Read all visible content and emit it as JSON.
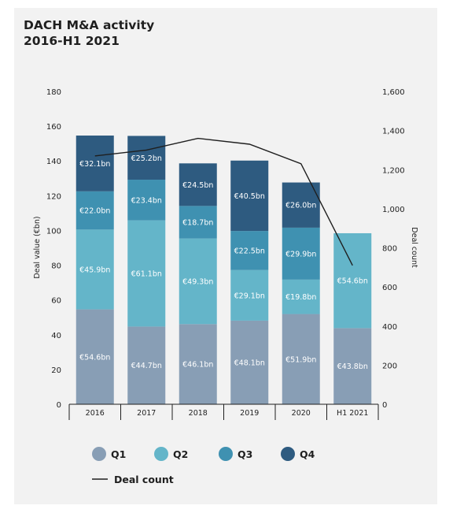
{
  "header": {
    "title_line1": "DACH M&A activity",
    "title_line2": "2016-H1 2021"
  },
  "chart_data": {
    "type": "bar",
    "stacked": true,
    "categories": [
      "2016",
      "2017",
      "2018",
      "2019",
      "2020",
      "H1 2021"
    ],
    "ylabel": "Deal value (€bn)",
    "ylim": [
      0,
      180
    ],
    "yticks": [
      0,
      20,
      40,
      60,
      80,
      100,
      120,
      140,
      160,
      180
    ],
    "y2label": "Deal count",
    "y2lim": [
      0,
      1600
    ],
    "y2ticks": [
      "0",
      "200",
      "400",
      "600",
      "800",
      "1,000",
      "1,200",
      "1,400",
      "1,600"
    ],
    "series": [
      {
        "name": "Q1",
        "color": "#889eb5",
        "values": [
          54.6,
          44.7,
          46.1,
          48.1,
          51.9,
          43.8
        ],
        "labels": [
          "€54.6bn",
          "€44.7bn",
          "€46.1bn",
          "€48.1bn",
          "€51.9bn",
          "€43.8bn"
        ]
      },
      {
        "name": "Q2",
        "color": "#64b5c9",
        "values": [
          45.9,
          61.1,
          49.3,
          29.1,
          19.8,
          54.6
        ],
        "labels": [
          "€45.9bn",
          "€61.1bn",
          "€49.3bn",
          "€29.1bn",
          "€19.8bn",
          "€54.6bn"
        ]
      },
      {
        "name": "Q3",
        "color": "#3f91b1",
        "values": [
          22.0,
          23.4,
          18.7,
          22.5,
          29.9,
          0
        ],
        "labels": [
          "€22.0bn",
          "€23.4bn",
          "€18.7bn",
          "€22.5bn",
          "€29.9bn",
          ""
        ]
      },
      {
        "name": "Q4",
        "color": "#2e5b80",
        "values": [
          32.1,
          25.2,
          24.5,
          40.5,
          26.0,
          0
        ],
        "labels": [
          "€32.1bn",
          "€25.2bn",
          "€24.5bn",
          "€40.5bn",
          "€26.0bn",
          ""
        ]
      }
    ],
    "line": {
      "name": "Deal count",
      "color": "#1f1f1f",
      "values": [
        1270,
        1300,
        1360,
        1330,
        1230,
        710
      ]
    },
    "legend_position": "bottom",
    "grid": false
  }
}
